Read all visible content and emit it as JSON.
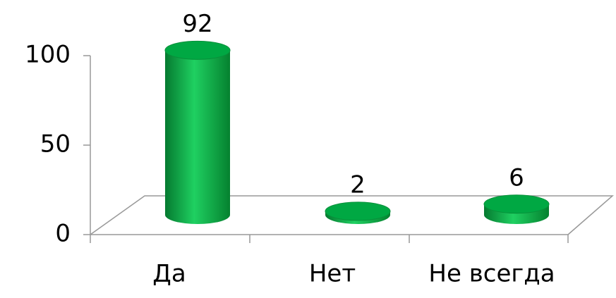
{
  "chart_data": {
    "type": "bar",
    "categories": [
      "Да",
      "Нет",
      "Не всегда"
    ],
    "values": [
      92,
      2,
      6
    ],
    "color": "#00a843",
    "ylim": [
      0,
      100
    ],
    "yticks": [
      0,
      50,
      100
    ]
  }
}
